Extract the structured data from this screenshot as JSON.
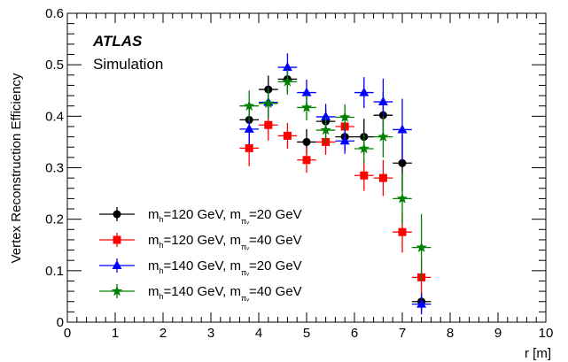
{
  "chart_data": {
    "type": "scatter",
    "xlabel": "r [m]",
    "ylabel": "Vertex Reconstruction Efficiency",
    "xlim": [
      0,
      10
    ],
    "ylim": [
      0,
      0.6
    ],
    "xticks": [
      "0",
      "1",
      "2",
      "3",
      "4",
      "5",
      "6",
      "7",
      "8",
      "9",
      "10"
    ],
    "yticks": [
      "0",
      "0.1",
      "0.2",
      "0.3",
      "0.4",
      "0.5",
      "0.6"
    ],
    "grid": false,
    "legend_position": "bottom-left",
    "annotations": {
      "experiment": "ATLAS",
      "label": "Simulation"
    },
    "series": [
      {
        "label_main": "m",
        "label_parts": [
          "h",
          "=120 GeV, m",
          "πᵥ",
          "=20 GeV"
        ],
        "color": "#000000",
        "marker": "circle",
        "points": [
          {
            "x": 3.8,
            "y": 0.393,
            "err": 0.03
          },
          {
            "x": 4.2,
            "y": 0.452,
            "err": 0.027
          },
          {
            "x": 4.6,
            "y": 0.472,
            "err": 0.025
          },
          {
            "x": 5.0,
            "y": 0.35,
            "err": 0.025
          },
          {
            "x": 5.4,
            "y": 0.39,
            "err": 0.025
          },
          {
            "x": 5.8,
            "y": 0.36,
            "err": 0.027
          },
          {
            "x": 6.2,
            "y": 0.36,
            "err": 0.035
          },
          {
            "x": 6.6,
            "y": 0.402,
            "err": 0.045
          },
          {
            "x": 7.0,
            "y": 0.309,
            "err": 0.055
          },
          {
            "x": 7.4,
            "y": 0.04,
            "err": 0.02
          }
        ]
      },
      {
        "label_main": "m",
        "label_parts": [
          "h",
          "=120 GeV, m",
          "πᵥ",
          "=40 GeV"
        ],
        "color": "#ff0000",
        "marker": "square",
        "points": [
          {
            "x": 3.8,
            "y": 0.338,
            "err": 0.035
          },
          {
            "x": 4.2,
            "y": 0.383,
            "err": 0.03
          },
          {
            "x": 4.6,
            "y": 0.362,
            "err": 0.025
          },
          {
            "x": 5.0,
            "y": 0.315,
            "err": 0.025
          },
          {
            "x": 5.4,
            "y": 0.35,
            "err": 0.025
          },
          {
            "x": 5.8,
            "y": 0.38,
            "err": 0.027
          },
          {
            "x": 6.2,
            "y": 0.285,
            "err": 0.03
          },
          {
            "x": 6.6,
            "y": 0.28,
            "err": 0.035
          },
          {
            "x": 7.0,
            "y": 0.175,
            "err": 0.04
          },
          {
            "x": 7.4,
            "y": 0.087,
            "err": 0.035
          }
        ]
      },
      {
        "label_main": "m",
        "label_parts": [
          "h",
          "=140 GeV, m",
          "πᵥ",
          "=20 GeV"
        ],
        "color": "#0000ff",
        "marker": "triangle",
        "points": [
          {
            "x": 3.8,
            "y": 0.375,
            "err": 0.03
          },
          {
            "x": 4.2,
            "y": 0.427,
            "err": 0.03
          },
          {
            "x": 4.6,
            "y": 0.495,
            "err": 0.027
          },
          {
            "x": 5.0,
            "y": 0.446,
            "err": 0.025
          },
          {
            "x": 5.4,
            "y": 0.399,
            "err": 0.025
          },
          {
            "x": 5.8,
            "y": 0.352,
            "err": 0.025
          },
          {
            "x": 6.2,
            "y": 0.446,
            "err": 0.03
          },
          {
            "x": 6.6,
            "y": 0.428,
            "err": 0.045
          },
          {
            "x": 7.0,
            "y": 0.374,
            "err": 0.06
          },
          {
            "x": 7.4,
            "y": 0.035,
            "err": 0.02
          }
        ]
      },
      {
        "label_main": "m",
        "label_parts": [
          "h",
          "=140 GeV, m",
          "πᵥ",
          "=40 GeV"
        ],
        "color": "#008000",
        "marker": "star",
        "points": [
          {
            "x": 3.8,
            "y": 0.42,
            "err": 0.03
          },
          {
            "x": 4.2,
            "y": 0.425,
            "err": 0.03
          },
          {
            "x": 4.6,
            "y": 0.467,
            "err": 0.025
          },
          {
            "x": 5.0,
            "y": 0.417,
            "err": 0.025
          },
          {
            "x": 5.4,
            "y": 0.373,
            "err": 0.025
          },
          {
            "x": 5.8,
            "y": 0.398,
            "err": 0.025
          },
          {
            "x": 6.2,
            "y": 0.337,
            "err": 0.03
          },
          {
            "x": 6.6,
            "y": 0.36,
            "err": 0.04
          },
          {
            "x": 7.0,
            "y": 0.24,
            "err": 0.05
          },
          {
            "x": 7.4,
            "y": 0.145,
            "err": 0.065
          }
        ]
      }
    ]
  }
}
